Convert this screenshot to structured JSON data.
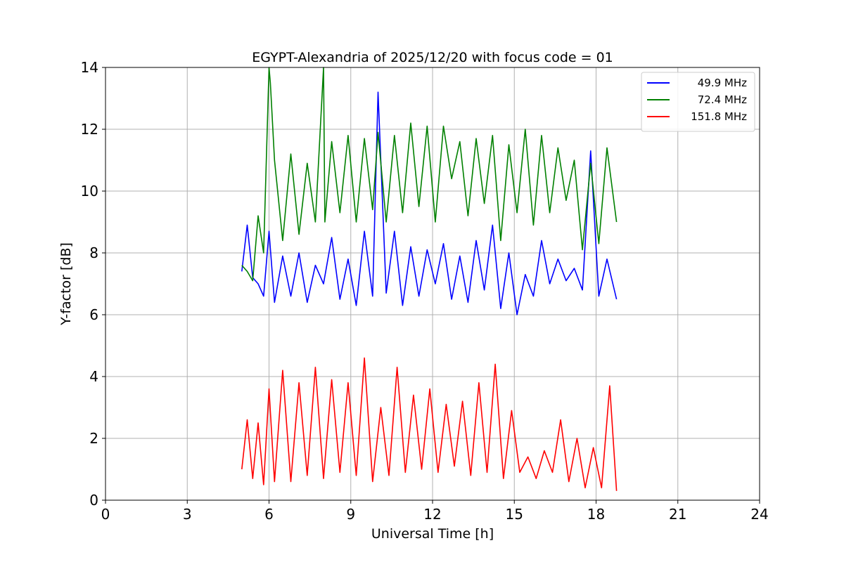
{
  "chart_data": {
    "type": "line",
    "title": "EGYPT-Alexandria of 2025/12/20 with focus code = 01",
    "xlabel": "Universal Time [h]",
    "ylabel": "Y-factor [dB]",
    "xlim": [
      0,
      24
    ],
    "ylim": [
      0,
      14
    ],
    "xticks": [
      0,
      3,
      6,
      9,
      12,
      15,
      18,
      21,
      24
    ],
    "yticks": [
      0,
      2,
      4,
      6,
      8,
      10,
      12,
      14
    ],
    "grid": true,
    "legend_position": "top-right",
    "series": [
      {
        "name": "49.9 MHz",
        "color": "#0000ff",
        "x": [
          5.0,
          5.2,
          5.4,
          5.6,
          5.8,
          6.0,
          6.2,
          6.5,
          6.8,
          7.1,
          7.4,
          7.7,
          8.0,
          8.3,
          8.6,
          8.9,
          9.2,
          9.5,
          9.8,
          10.0,
          10.3,
          10.6,
          10.9,
          11.2,
          11.5,
          11.8,
          12.1,
          12.4,
          12.7,
          13.0,
          13.3,
          13.6,
          13.9,
          14.2,
          14.5,
          14.8,
          15.1,
          15.4,
          15.7,
          16.0,
          16.3,
          16.6,
          16.9,
          17.2,
          17.5,
          17.8,
          18.1,
          18.4,
          18.75
        ],
        "y": [
          7.4,
          8.9,
          7.2,
          7.0,
          6.6,
          8.7,
          6.4,
          7.9,
          6.6,
          8.0,
          6.4,
          7.6,
          7.0,
          8.5,
          6.5,
          7.8,
          6.3,
          8.7,
          6.6,
          13.2,
          6.7,
          8.7,
          6.3,
          8.2,
          6.6,
          8.1,
          7.0,
          8.3,
          6.5,
          7.9,
          6.4,
          8.4,
          6.8,
          8.9,
          6.2,
          8.0,
          6.0,
          7.3,
          6.6,
          8.4,
          7.0,
          7.8,
          7.1,
          7.5,
          6.8,
          11.3,
          6.6,
          7.8,
          6.5
        ]
      },
      {
        "name": "72.4 MHz",
        "color": "#008000",
        "x": [
          5.0,
          5.2,
          5.4,
          5.6,
          5.8,
          6.0,
          6.05,
          6.2,
          6.5,
          6.8,
          7.1,
          7.4,
          7.7,
          8.0,
          8.05,
          8.3,
          8.6,
          8.9,
          9.2,
          9.5,
          9.8,
          10.0,
          10.3,
          10.6,
          10.9,
          11.2,
          11.5,
          11.8,
          12.1,
          12.4,
          12.7,
          13.0,
          13.3,
          13.6,
          13.9,
          14.2,
          14.5,
          14.8,
          15.1,
          15.4,
          15.7,
          16.0,
          16.3,
          16.6,
          16.9,
          17.2,
          17.5,
          17.8,
          18.1,
          18.4,
          18.75
        ],
        "y": [
          7.6,
          7.4,
          7.1,
          9.2,
          8.0,
          14.0,
          13.5,
          11.0,
          8.4,
          11.2,
          8.6,
          10.9,
          9.0,
          14.0,
          9.0,
          11.6,
          9.3,
          11.8,
          9.0,
          11.7,
          9.4,
          11.9,
          9.0,
          11.8,
          9.3,
          12.2,
          9.5,
          12.1,
          9.0,
          12.1,
          10.4,
          11.6,
          9.2,
          11.7,
          9.6,
          11.8,
          8.4,
          11.5,
          9.3,
          12.0,
          8.9,
          11.8,
          9.3,
          11.4,
          9.7,
          11.0,
          8.1,
          10.9,
          8.3,
          11.4,
          9.0
        ]
      },
      {
        "name": "151.8 MHz",
        "color": "#ff0000",
        "x": [
          5.0,
          5.2,
          5.4,
          5.6,
          5.8,
          6.0,
          6.2,
          6.5,
          6.8,
          7.1,
          7.4,
          7.7,
          8.0,
          8.3,
          8.6,
          8.9,
          9.2,
          9.5,
          9.8,
          10.1,
          10.4,
          10.7,
          11.0,
          11.3,
          11.6,
          11.9,
          12.2,
          12.5,
          12.8,
          13.1,
          13.4,
          13.7,
          14.0,
          14.3,
          14.6,
          14.9,
          15.2,
          15.5,
          15.8,
          16.1,
          16.4,
          16.7,
          17.0,
          17.3,
          17.6,
          17.9,
          18.2,
          18.5,
          18.75
        ],
        "y": [
          1.0,
          2.6,
          0.7,
          2.5,
          0.5,
          3.6,
          0.6,
          4.2,
          0.6,
          3.8,
          0.8,
          4.3,
          0.7,
          3.9,
          0.9,
          3.8,
          0.8,
          4.6,
          0.6,
          3.0,
          0.8,
          4.3,
          0.9,
          3.4,
          1.0,
          3.6,
          0.9,
          3.1,
          1.1,
          3.2,
          0.8,
          3.8,
          0.9,
          4.4,
          0.7,
          2.9,
          0.9,
          1.4,
          0.7,
          1.6,
          0.9,
          2.6,
          0.6,
          2.0,
          0.4,
          1.7,
          0.4,
          3.7,
          0.3
        ]
      }
    ]
  }
}
